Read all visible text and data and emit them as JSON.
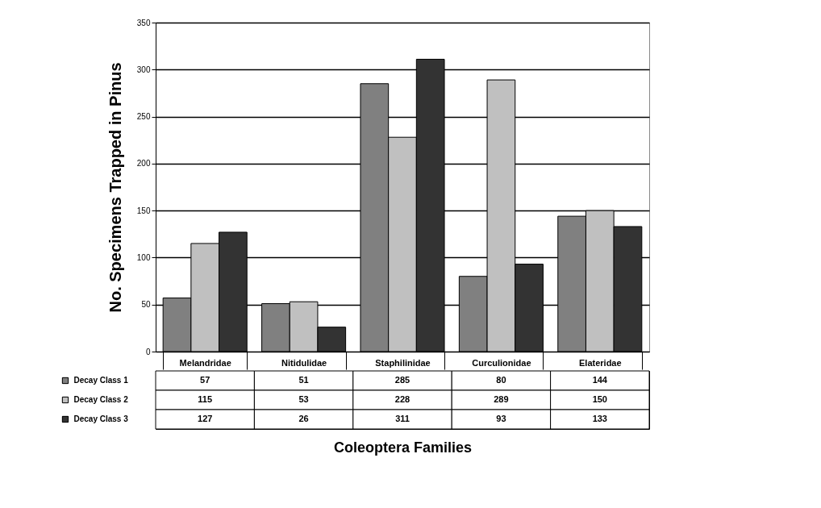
{
  "chart_data": {
    "type": "bar",
    "xlabel": "Coleoptera Families",
    "ylabel": "No. Specimens Trapped in Pinus",
    "categories": [
      "Melandridae",
      "Nitidulidae",
      "Staphilinidae",
      "Curculionidae",
      "Elateridae"
    ],
    "series": [
      {
        "name": "Decay Class 1",
        "color": "#808080",
        "values": [
          57,
          51,
          285,
          80,
          144
        ]
      },
      {
        "name": "Decay Class 2",
        "color": "#c0c0c0",
        "values": [
          115,
          53,
          228,
          289,
          150
        ]
      },
      {
        "name": "Decay Class 3",
        "color": "#333333",
        "values": [
          127,
          26,
          311,
          93,
          133
        ]
      }
    ],
    "ylim": [
      0,
      350
    ],
    "yticks": [
      0,
      50,
      100,
      150,
      200,
      250,
      300,
      350
    ],
    "grid": "y",
    "legend": "bottom",
    "data_labels": true
  }
}
